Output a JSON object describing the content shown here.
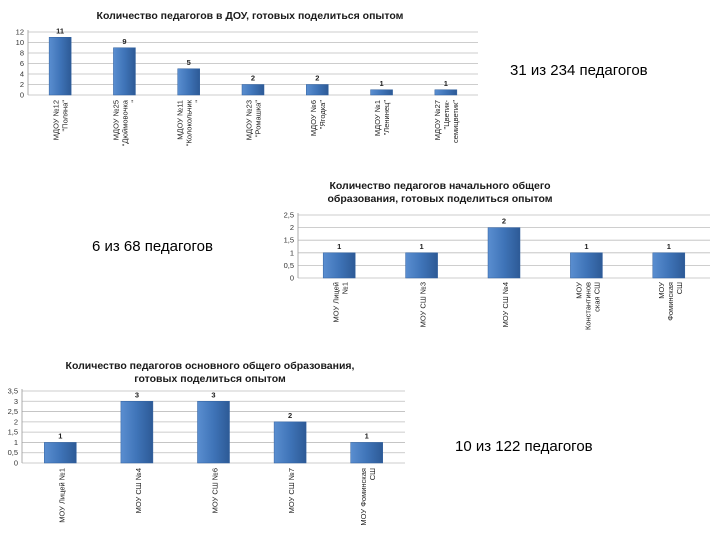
{
  "notes": {
    "note1": "31 из 234 педагогов",
    "note2": "6 из 68 педагогов",
    "note3": "10 из 122 педагогов"
  },
  "chart_data": [
    {
      "type": "bar",
      "title": "Количество педагогов в ДОУ, готовых поделиться опытом",
      "categories": [
        [
          "МДОУ №12",
          "\"Поляна\""
        ],
        [
          "МДОУ №25",
          "\"Дюймовочка",
          "\""
        ],
        [
          "МДОУ №11",
          "\"Колокольчик",
          "\""
        ],
        [
          "МДОУ №23",
          "\"Ромашка\""
        ],
        [
          "МДОУ №6",
          "\"Ягодка\""
        ],
        [
          "МДОУ №1",
          "\"Ленинец\""
        ],
        [
          "МДОУ №27",
          "\"Цветик-",
          "семицветик\""
        ]
      ],
      "values": [
        11,
        9,
        5,
        2,
        2,
        1,
        1
      ],
      "yticks": [
        0,
        2,
        4,
        6,
        8,
        10,
        12
      ],
      "ylim": [
        0,
        12
      ],
      "grid": true,
      "bar_color": "#3f74b8"
    },
    {
      "type": "bar",
      "title": "Количество педагогов начального общего образования, готовых поделиться опытом",
      "categories": [
        [
          "МОУ Лицей",
          "№1"
        ],
        [
          "МОУ СШ №3"
        ],
        [
          "МОУ СШ №4"
        ],
        [
          "МОУ",
          "Константинов",
          "ская СШ"
        ],
        [
          "МОУ",
          "Фоминская",
          "СШ"
        ]
      ],
      "values": [
        1,
        1,
        2,
        1,
        1
      ],
      "yticks": [
        0,
        0.5,
        1,
        1.5,
        2,
        2.5
      ],
      "ytick_labels": [
        "0",
        "0,5",
        "1",
        "1,5",
        "2",
        "2,5"
      ],
      "ylim": [
        0,
        2.5
      ],
      "grid": true,
      "bar_color": "#3f74b8"
    },
    {
      "type": "bar",
      "title": "Количество педагогов основного общего образования, готовых поделиться опытом",
      "categories": [
        [
          "МОУ Лицей №1"
        ],
        [
          "МОУ СШ №4"
        ],
        [
          "МОУ СШ №6"
        ],
        [
          "МОУ СШ №7"
        ],
        [
          "МОУ Фоминская",
          "СШ"
        ]
      ],
      "values": [
        1,
        3,
        3,
        2,
        1
      ],
      "yticks": [
        0,
        0.5,
        1,
        1.5,
        2,
        2.5,
        3,
        3.5
      ],
      "ytick_labels": [
        "0",
        "0,5",
        "1",
        "1,5",
        "2",
        "2,5",
        "3",
        "3,5"
      ],
      "ylim": [
        0,
        3.5
      ],
      "grid": true,
      "bar_color": "#3f74b8"
    }
  ]
}
